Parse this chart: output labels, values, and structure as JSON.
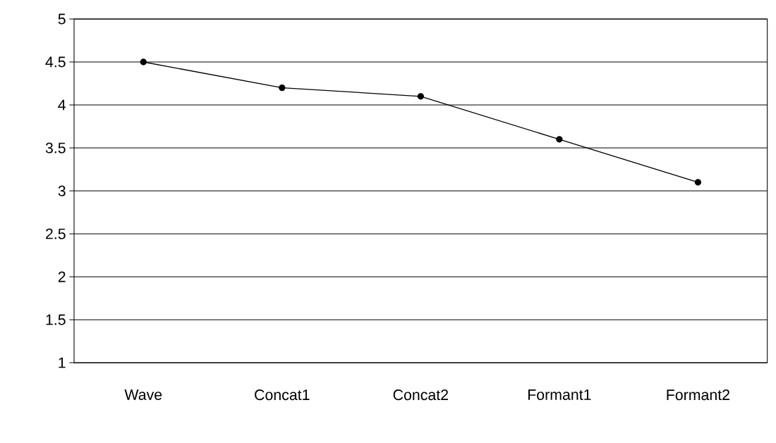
{
  "chart_data": {
    "type": "line",
    "categories": [
      "Wave",
      "Concat1",
      "Concat2",
      "Formant1",
      "Formant2"
    ],
    "series": [
      {
        "color": "#000000",
        "values": [
          4.5,
          4.2,
          4.1,
          3.6,
          3.1
        ]
      }
    ],
    "ylim": [
      1,
      5
    ],
    "yticks": [
      1,
      1.5,
      2,
      2.5,
      3,
      3.5,
      4,
      4.5,
      5
    ],
    "grid": "y",
    "marker": "circle",
    "line_style": "solid"
  }
}
